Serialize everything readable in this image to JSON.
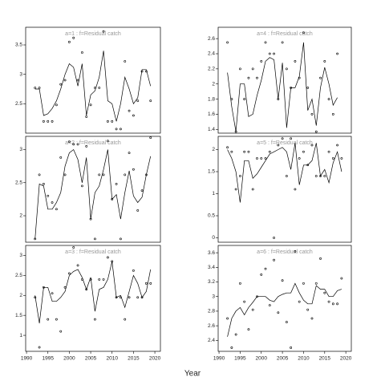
{
  "xlabel": "Year",
  "chart_data": [
    {
      "type": "scatter",
      "title": "a=1 : f=Residual catch",
      "xlim": [
        1989.8,
        2021.3
      ],
      "ylim": [
        2.0,
        3.8
      ],
      "yticks": [
        2.5,
        3.0,
        3.5
      ],
      "x": [
        1992,
        1993,
        1994,
        1995,
        1996,
        1997,
        1998,
        1999,
        2000,
        2001,
        2002,
        2003,
        2004,
        2005,
        2006,
        2007,
        2008,
        2009,
        2010,
        2011,
        2012,
        2013,
        2014,
        2015,
        2016,
        2017,
        2018,
        2019
      ],
      "values": [
        2.77,
        2.77,
        2.2,
        2.2,
        2.2,
        2.48,
        2.83,
        2.9,
        3.55,
        3.62,
        2.9,
        3.37,
        2.28,
        2.48,
        2.77,
        2.77,
        3.73,
        2.2,
        2.2,
        2.07,
        2.07,
        3.22,
        2.38,
        2.3,
        2.55,
        3.05,
        3.05,
        2.55
      ],
      "line": [
        2.75,
        2.75,
        2.3,
        2.33,
        2.42,
        2.55,
        2.75,
        3.0,
        3.18,
        3.12,
        2.8,
        3.18,
        2.3,
        2.65,
        2.72,
        2.95,
        3.4,
        2.55,
        2.5,
        2.2,
        2.5,
        2.95,
        2.75,
        2.5,
        2.6,
        3.08,
        3.08,
        2.8
      ]
    },
    {
      "type": "scatter",
      "title": "a=2 : f=Residual catch",
      "xlim": [
        1989.8,
        2021.3
      ],
      "ylim": [
        1.6,
        3.2
      ],
      "yticks": [
        2.0,
        2.5,
        3.0
      ],
      "x": [
        1992,
        1993,
        1994,
        1995,
        1996,
        1997,
        1998,
        1999,
        2000,
        2001,
        2002,
        2003,
        2004,
        2005,
        2006,
        2007,
        2008,
        2009,
        2010,
        2011,
        2012,
        2013,
        2014,
        2015,
        2016,
        2017,
        2018,
        2019
      ],
      "values": [
        1.65,
        2.62,
        2.48,
        2.3,
        2.2,
        2.1,
        2.88,
        2.62,
        3.12,
        3.08,
        3.08,
        2.45,
        3.05,
        1.95,
        1.65,
        2.62,
        2.62,
        3.13,
        2.25,
        2.48,
        1.65,
        2.62,
        2.95,
        2.7,
        2.08,
        2.38,
        2.62,
        3.18
      ],
      "line": [
        1.65,
        2.48,
        2.45,
        2.1,
        2.1,
        2.2,
        2.35,
        2.75,
        2.95,
        3.0,
        2.85,
        2.5,
        2.88,
        1.95,
        2.35,
        2.45,
        2.7,
        3.0,
        2.25,
        2.32,
        1.95,
        2.35,
        2.68,
        2.3,
        2.2,
        2.28,
        2.62,
        2.9
      ]
    },
    {
      "type": "scatter",
      "title": "a=3 : f=Residual catch",
      "xlim": [
        1989.8,
        2021.3
      ],
      "ylim": [
        0.6,
        3.25
      ],
      "yticks": [
        1.0,
        1.5,
        2.0,
        2.5,
        3.0
      ],
      "xticks": [
        1990,
        1995,
        2000,
        2005,
        2010,
        2015,
        2020
      ],
      "x": [
        1992,
        1993,
        1994,
        1995,
        1996,
        1997,
        1998,
        1999,
        2000,
        2001,
        2002,
        2003,
        2004,
        2005,
        2006,
        2007,
        2008,
        2009,
        2010,
        2011,
        2012,
        2013,
        2014,
        2015,
        2016,
        2017,
        2018,
        2019
      ],
      "values": [
        1.95,
        0.7,
        2.2,
        1.4,
        2.05,
        1.4,
        1.1,
        2.2,
        2.55,
        3.2,
        2.75,
        2.4,
        2.15,
        2.4,
        1.4,
        2.4,
        2.4,
        2.95,
        2.85,
        1.95,
        1.95,
        1.4,
        1.95,
        2.62,
        1.95,
        1.95,
        2.3,
        2.3
      ],
      "line": [
        2.0,
        1.3,
        2.2,
        2.2,
        1.85,
        1.85,
        1.95,
        2.1,
        2.5,
        2.6,
        2.65,
        2.45,
        2.15,
        2.45,
        1.6,
        2.15,
        2.2,
        2.4,
        2.85,
        1.95,
        2.0,
        1.7,
        2.1,
        2.5,
        2.3,
        1.95,
        2.1,
        2.65
      ]
    },
    {
      "type": "scatter",
      "title": "a=4 : f=Residual catch",
      "xlim": [
        1989.8,
        2021.3
      ],
      "ylim": [
        1.35,
        2.75
      ],
      "yticks": [
        1.4,
        1.6,
        1.8,
        2.0,
        2.2,
        2.4,
        2.6
      ],
      "x": [
        1992,
        1993,
        1994,
        1995,
        1996,
        1997,
        1998,
        1999,
        2000,
        2001,
        2002,
        2003,
        2004,
        2005,
        2006,
        2007,
        2008,
        2009,
        2010,
        2011,
        2012,
        2013,
        2014,
        2015,
        2016,
        2017,
        2018
      ],
      "values": [
        2.55,
        1.8,
        1.37,
        2.2,
        1.8,
        2.08,
        2.2,
        2.08,
        2.3,
        2.55,
        2.4,
        2.4,
        1.8,
        2.55,
        2.2,
        1.95,
        2.3,
        2.08,
        2.68,
        1.95,
        1.6,
        1.37,
        2.08,
        2.3,
        1.8,
        1.6,
        2.4
      ],
      "line": [
        2.15,
        1.7,
        1.37,
        2.0,
        2.0,
        1.57,
        1.6,
        1.85,
        2.05,
        2.3,
        2.35,
        2.32,
        1.8,
        2.28,
        1.42,
        1.95,
        1.95,
        2.1,
        2.55,
        1.65,
        1.8,
        1.45,
        1.95,
        2.22,
        2.0,
        1.72,
        1.82
      ]
    },
    {
      "type": "scatter",
      "title": "a=5 : f=Residual catch",
      "xlim": [
        1989.8,
        2021.3
      ],
      "ylim": [
        -0.1,
        2.3
      ],
      "yticks": [
        0.0,
        0.5,
        1.0,
        1.5,
        2.0
      ],
      "x": [
        1992,
        1993,
        1994,
        1995,
        1996,
        1997,
        1998,
        1999,
        2000,
        2001,
        2002,
        2003,
        2004,
        2005,
        2006,
        2007,
        2008,
        2009,
        2010,
        2011,
        2012,
        2013,
        2014,
        2015,
        2016,
        2017,
        2018,
        2019
      ],
      "values": [
        2.05,
        1.95,
        1.1,
        1.4,
        1.95,
        1.95,
        1.1,
        1.8,
        1.8,
        1.8,
        1.95,
        0.0,
        2.1,
        2.25,
        1.4,
        2.25,
        1.1,
        1.8,
        1.95,
        1.65,
        2.1,
        1.4,
        1.4,
        1.4,
        1.95,
        1.8,
        2.1,
        1.8
      ],
      "line": [
        2.0,
        1.8,
        1.5,
        0.8,
        1.75,
        1.75,
        1.35,
        1.45,
        1.6,
        1.75,
        1.9,
        1.95,
        2.0,
        2.05,
        1.95,
        1.55,
        2.15,
        1.2,
        1.65,
        1.65,
        1.75,
        2.15,
        1.4,
        1.55,
        1.25,
        1.7,
        1.95,
        1.5
      ]
    },
    {
      "type": "scatter",
      "title": "a=6 : f=Residual catch",
      "xlim": [
        1989.8,
        2021.3
      ],
      "ylim": [
        2.25,
        3.7
      ],
      "yticks": [
        2.4,
        2.6,
        2.8,
        3.0,
        3.2,
        3.4,
        3.6
      ],
      "xticks": [
        1990,
        1995,
        2000,
        2005,
        2010,
        2015,
        2020
      ],
      "x": [
        1992,
        1993,
        1994,
        1995,
        1996,
        1997,
        1998,
        1999,
        2000,
        2001,
        2002,
        2003,
        2004,
        2005,
        2006,
        2007,
        2008,
        2009,
        2010,
        2011,
        2012,
        2013,
        2014,
        2015,
        2016,
        2017,
        2018,
        2019
      ],
      "values": [
        2.7,
        2.3,
        2.48,
        3.18,
        2.93,
        2.55,
        2.82,
        3.0,
        3.3,
        3.38,
        2.88,
        3.5,
        2.78,
        3.22,
        2.65,
        2.3,
        3.62,
        2.93,
        3.18,
        2.82,
        2.7,
        3.18,
        3.52,
        3.05,
        2.93,
        2.9,
        2.9,
        3.25
      ],
      "line": [
        2.45,
        2.7,
        2.8,
        2.85,
        2.75,
        2.85,
        2.92,
        3.0,
        3.0,
        3.0,
        2.95,
        2.93,
        3.0,
        3.03,
        3.05,
        3.05,
        3.18,
        3.05,
        2.95,
        2.9,
        2.9,
        3.15,
        3.1,
        3.1,
        3.0,
        3.0,
        3.08,
        3.1
      ]
    }
  ]
}
